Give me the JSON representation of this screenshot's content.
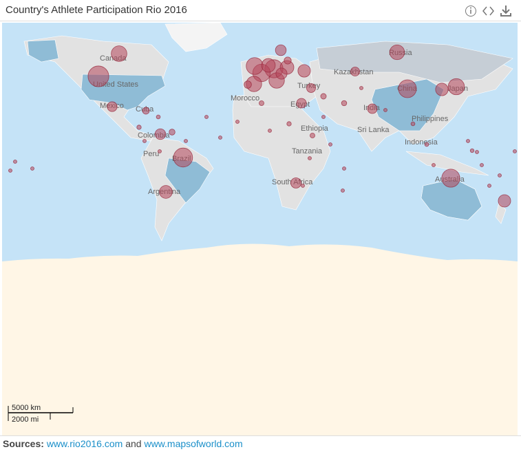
{
  "header": {
    "title": "Country's Athlete Participation Rio 2016"
  },
  "map": {
    "labels": [
      "Canada",
      "United States",
      "Mexico",
      "Cuba",
      "Colombia",
      "Peru",
      "Brazil",
      "Argentina",
      "Morocco",
      "Egypt",
      "Ethiopia",
      "Tanzania",
      "South Africa",
      "Russia",
      "Kazakhstan",
      "Turkey",
      "India",
      "Sri Lanka",
      "China",
      "Japan",
      "Philippines",
      "Indonesia",
      "Australia"
    ],
    "bubbles": {
      "values": [
        555,
        465,
        314,
        282,
        413,
        338,
        421,
        425,
        395,
        366,
        309,
        306,
        242,
        243,
        204,
        199,
        213,
        203,
        160,
        150,
        125,
        147,
        120,
        137,
        120,
        104,
        103,
        60,
        70,
        65,
        45,
        40,
        35,
        30,
        30,
        25,
        25,
        20,
        20,
        20,
        18,
        15,
        15,
        15,
        12,
        12,
        12,
        10,
        10,
        10,
        10,
        10,
        8,
        8,
        8,
        8,
        8,
        6,
        6,
        6,
        6,
        6,
        5,
        5,
        5,
        5
      ]
    },
    "scale": {
      "km": "5000 km",
      "mi": "2000 mi"
    }
  },
  "footer": {
    "label": "Sources:",
    "link1": "www.rio2016.com",
    "joiner": "and",
    "link2": "www.mapsofworld.com"
  }
}
